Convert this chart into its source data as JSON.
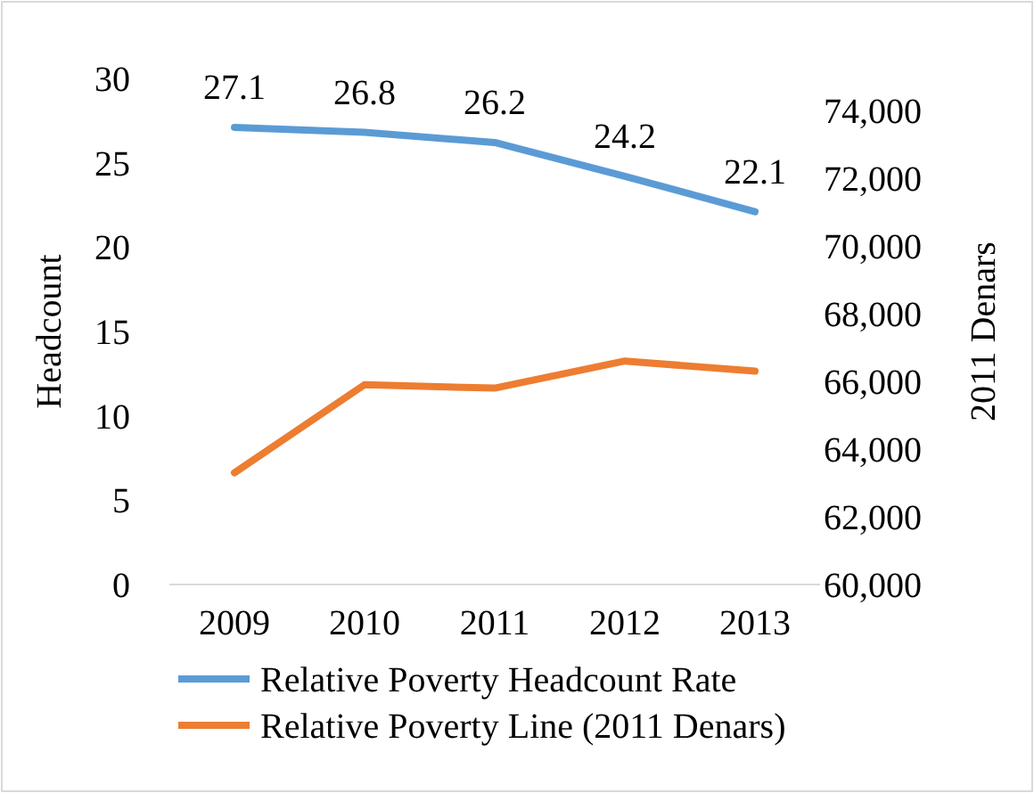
{
  "chart_data": {
    "type": "line",
    "categories": [
      "2009",
      "2010",
      "2011",
      "2012",
      "2013"
    ],
    "ylabel": "Headcount",
    "y2label": "2011 Denars",
    "ylim": [
      0,
      30
    ],
    "yticks": [
      0,
      5,
      10,
      15,
      20,
      25,
      30
    ],
    "y2lim": [
      60000,
      74000
    ],
    "y2ticks": [
      {
        "value": 60000,
        "label": "60,000"
      },
      {
        "value": 62000,
        "label": "62,000"
      },
      {
        "value": 64000,
        "label": "64,000"
      },
      {
        "value": 66000,
        "label": "66,000"
      },
      {
        "value": 68000,
        "label": "68,000"
      },
      {
        "value": 70000,
        "label": "70,000"
      },
      {
        "value": 72000,
        "label": "72,000"
      },
      {
        "value": 74000,
        "label": "74,000"
      }
    ],
    "grid": false,
    "legend": "bottom",
    "marker": "none",
    "line_style": "solid",
    "series": [
      {
        "name": "Relative Poverty Headcount Rate",
        "color": "#5b9bd5",
        "values": [
          27.1,
          26.8,
          26.2,
          24.2,
          22.1
        ],
        "value_labels": [
          "27.1",
          "26.8",
          "26.2",
          "24.2",
          "22.1"
        ]
      },
      {
        "name": "Relative Poverty Line (2011 Denars)",
        "color": "#ed7d31",
        "axis": "y2",
        "values": [
          63300,
          65900,
          65800,
          66600,
          66300
        ]
      }
    ]
  }
}
